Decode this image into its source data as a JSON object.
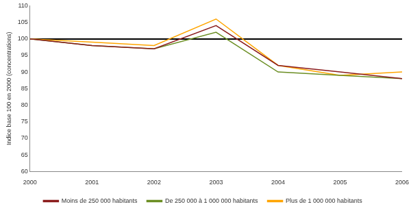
{
  "chart_data": {
    "type": "line",
    "y_label": "Indice base 100 en 2000 (concentrations)",
    "categories": [
      "2000",
      "2001",
      "2002",
      "2003",
      "2004",
      "2005",
      "2006"
    ],
    "series": [
      {
        "name": "Moins de 250 000 habitants",
        "color": "#8b1c1c",
        "values": [
          100,
          98,
          97,
          104,
          92,
          90,
          88
        ]
      },
      {
        "name": "De 250 000 à 1 000 000 habitants",
        "color": "#6b8e23",
        "values": [
          100,
          98,
          97,
          102,
          90,
          89,
          88
        ]
      },
      {
        "name": "Plus de 1 000 000 habitants",
        "color": "#ffa500",
        "values": [
          100,
          99,
          98,
          106,
          92,
          89,
          90
        ]
      }
    ],
    "ylim": [
      60,
      110
    ],
    "yticks": [
      60,
      65,
      70,
      75,
      80,
      85,
      90,
      95,
      100,
      105,
      110
    ],
    "grid": false,
    "legend": "bottom"
  }
}
